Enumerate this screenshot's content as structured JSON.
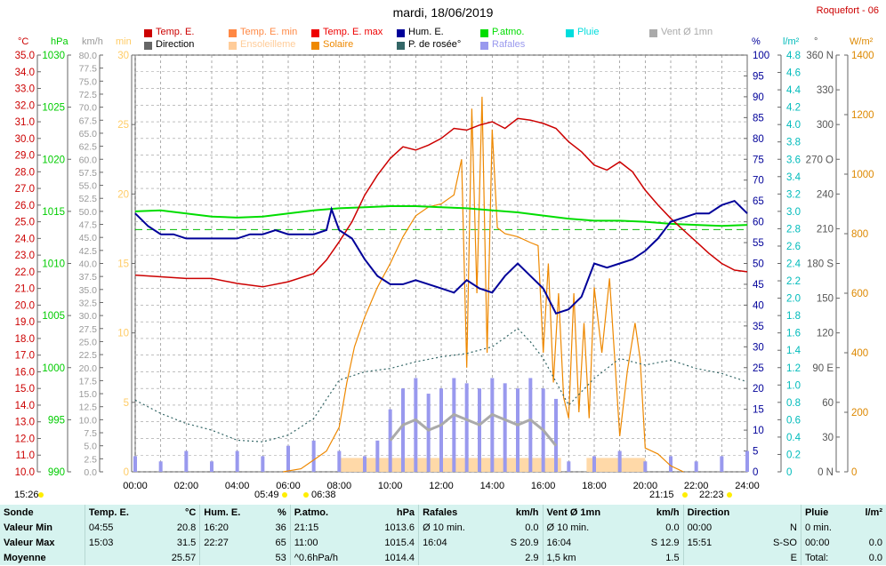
{
  "chart_data": {
    "type": "line",
    "title": "mardi, 18/06/2019",
    "station": "Roquefort - 06",
    "x_ticks": [
      "00:00",
      "02:00",
      "04:00",
      "06:00",
      "08:00",
      "10:00",
      "12:00",
      "14:00",
      "16:00",
      "18:00",
      "20:00",
      "22:00",
      "24:00"
    ],
    "x_range_hours": [
      0,
      24
    ],
    "sun_markers": [
      {
        "label": "15:26",
        "kind": "moon"
      },
      {
        "label": "05:49",
        "kind": "sunrise"
      },
      {
        "label": "06:38",
        "kind": "sunrise"
      },
      {
        "label": "21:15",
        "kind": "sunset"
      },
      {
        "label": "22:23",
        "kind": "moonset"
      }
    ],
    "axes": [
      {
        "unit": "°C",
        "color": "#cc0000",
        "range": [
          10,
          35
        ],
        "ticks": [
          "35.0",
          "34.0",
          "33.0",
          "32.0",
          "31.0",
          "30.0",
          "29.0",
          "28.0",
          "27.0",
          "26.0",
          "25.0",
          "24.0",
          "23.0",
          "22.0",
          "21.0",
          "20.0",
          "19.0",
          "18.0",
          "17.0",
          "16.0",
          "15.0",
          "14.0",
          "13.0",
          "12.0",
          "11.0",
          "10.0"
        ]
      },
      {
        "unit": "hPa",
        "color": "#00cc00",
        "range": [
          990,
          1030
        ],
        "ticks": [
          "1030",
          "1025",
          "1020",
          "1015",
          "1010",
          "1005",
          "1000",
          "995",
          "990"
        ]
      },
      {
        "unit": "km/h",
        "color": "#999999",
        "range": [
          0,
          80
        ],
        "ticks": [
          "80.0",
          "77.5",
          "75.0",
          "72.5",
          "70.0",
          "67.5",
          "65.0",
          "62.5",
          "60.0",
          "57.5",
          "55.0",
          "52.5",
          "50.0",
          "47.5",
          "45.0",
          "42.5",
          "40.0",
          "37.5",
          "35.0",
          "32.5",
          "30.0",
          "27.5",
          "25.0",
          "22.5",
          "20.0",
          "17.5",
          "15.0",
          "12.5",
          "10.0",
          "7.5",
          "5.0",
          "2.5",
          "0.0"
        ]
      },
      {
        "unit": "min",
        "color": "#ffcc66",
        "range": [
          0,
          30
        ],
        "ticks": [
          "30",
          "25",
          "20",
          "15",
          "10",
          "5",
          "0"
        ]
      },
      {
        "unit": "%",
        "color": "#000099",
        "range": [
          0,
          100
        ],
        "ticks": [
          "100",
          "95",
          "90",
          "85",
          "80",
          "75",
          "70",
          "65",
          "60",
          "55",
          "50",
          "45",
          "40",
          "35",
          "30",
          "25",
          "20",
          "15",
          "10",
          "5",
          "0"
        ]
      },
      {
        "unit": "l/m²",
        "color": "#00bbbb",
        "range": [
          0,
          5
        ],
        "ticks": [
          "4.8",
          "4.6",
          "4.4",
          "4.2",
          "4.0",
          "3.8",
          "3.6",
          "3.4",
          "3.2",
          "3.0",
          "2.8",
          "2.6",
          "2.4",
          "2.2",
          "2.0",
          "1.8",
          "1.6",
          "1.4",
          "1.2",
          "1.0",
          "0.8",
          "0.6",
          "0.4",
          "0.2",
          "0"
        ]
      },
      {
        "unit": "°",
        "color": "#555555",
        "range": [
          0,
          360
        ],
        "ticks": [
          "360 N",
          "330",
          "300",
          "270 O",
          "240",
          "210",
          "180 S",
          "150",
          "120",
          "90 E",
          "60",
          "30",
          "0 N"
        ]
      },
      {
        "unit": "W/m²",
        "color": "#dd8800",
        "range": [
          0,
          1400
        ],
        "ticks": [
          "1400",
          "1200",
          "1000",
          "800",
          "600",
          "400",
          "200",
          "0"
        ]
      }
    ],
    "legend": [
      {
        "label": "Temp. E.",
        "color": "#cc0000"
      },
      {
        "label": "Temp. E. min",
        "color": "#ff8844"
      },
      {
        "label": "Temp. E. max",
        "color": "#ee0000"
      },
      {
        "label": "Hum. E.",
        "color": "#000099"
      },
      {
        "label": "P.atmo.",
        "color": "#00dd00"
      },
      {
        "label": "Pluie",
        "color": "#00dddd"
      },
      {
        "label": "Vent Ø 1mn",
        "color": "#aaaaaa"
      },
      {
        "label": "Direction",
        "color": "#666666"
      },
      {
        "label": "Ensoleilleme",
        "color": "#ffcc99"
      },
      {
        "label": "Solaire",
        "color": "#ee8800"
      },
      {
        "label": "P. de rosée°",
        "color": "#336666"
      },
      {
        "label": "Rafales",
        "color": "#9999ee"
      }
    ],
    "series": [
      {
        "name": "Temp. E.",
        "unit": "°C",
        "x": [
          0,
          1,
          2,
          3,
          4,
          5,
          6,
          7,
          7.5,
          8,
          8.5,
          9,
          9.5,
          10,
          10.5,
          11,
          11.5,
          12,
          12.5,
          13,
          13.5,
          14,
          14.5,
          15,
          15.5,
          16,
          16.5,
          17,
          17.5,
          18,
          18.5,
          19,
          19.5,
          20,
          20.5,
          21,
          21.5,
          22,
          22.5,
          23,
          23.5,
          24
        ],
        "y": [
          21.8,
          21.7,
          21.6,
          21.6,
          21.3,
          21.1,
          21.4,
          21.9,
          22.7,
          23.8,
          25.0,
          26.6,
          27.8,
          28.8,
          29.5,
          29.3,
          29.6,
          30.0,
          30.6,
          30.5,
          30.8,
          31.0,
          30.6,
          31.2,
          31.1,
          30.9,
          30.6,
          29.8,
          29.2,
          28.4,
          28.1,
          28.6,
          28.0,
          26.9,
          26.0,
          25.2,
          24.5,
          23.8,
          23.1,
          22.5,
          22.1,
          22.0
        ]
      },
      {
        "name": "Hum. E.",
        "unit": "%",
        "x": [
          0,
          0.5,
          1,
          1.5,
          2,
          2.5,
          3,
          3.5,
          4,
          4.5,
          5,
          5.5,
          6,
          6.5,
          7,
          7.5,
          7.7,
          8,
          8.5,
          9,
          9.5,
          10,
          10.5,
          11,
          11.5,
          12,
          12.5,
          13,
          13.5,
          14,
          14.5,
          15,
          15.5,
          16,
          16.5,
          17,
          17.5,
          18,
          18.5,
          19,
          19.5,
          20,
          20.5,
          21,
          21.5,
          22,
          22.5,
          23,
          23.5,
          24
        ],
        "y": [
          62,
          59,
          57,
          57,
          56,
          56,
          56,
          56,
          56,
          57,
          57,
          58,
          57,
          57,
          57,
          58,
          63,
          58,
          56,
          51,
          47,
          45,
          45,
          46,
          45,
          44,
          43,
          46,
          44,
          43,
          47,
          50,
          47,
          44,
          38,
          39,
          42,
          50,
          49,
          50,
          51,
          53,
          56,
          60,
          61,
          62,
          62,
          64,
          65,
          62
        ]
      },
      {
        "name": "P.atmo.",
        "unit": "hPa",
        "x": [
          0,
          1,
          2,
          3,
          4,
          5,
          6,
          7,
          8,
          9,
          10,
          11,
          12,
          13,
          14,
          15,
          16,
          17,
          18,
          19,
          20,
          21,
          22,
          23,
          24
        ],
        "y": [
          1015.0,
          1015.1,
          1014.8,
          1014.5,
          1014.4,
          1014.5,
          1014.8,
          1015.1,
          1015.3,
          1015.4,
          1015.5,
          1015.5,
          1015.4,
          1015.3,
          1015.1,
          1014.9,
          1014.6,
          1014.3,
          1014.1,
          1014.1,
          1014.0,
          1013.8,
          1013.7,
          1013.6,
          1013.7
        ]
      },
      {
        "name": "P. de rosée°",
        "unit": "°C",
        "x": [
          0,
          1,
          2,
          3,
          4,
          5,
          6,
          7,
          8,
          9,
          10,
          11,
          12,
          13,
          14,
          15,
          15.5,
          16,
          17,
          18,
          19,
          20,
          21,
          22,
          23,
          24
        ],
        "y": [
          14.3,
          13.5,
          12.9,
          12.5,
          11.9,
          11.8,
          12.2,
          13.2,
          15.5,
          16.0,
          16.2,
          16.6,
          16.9,
          17.1,
          17.5,
          18.6,
          17.8,
          16.8,
          14.0,
          15.6,
          16.8,
          16.4,
          16.7,
          16.2,
          15.9,
          15.4
        ]
      },
      {
        "name": "Solaire",
        "unit": "W/m²",
        "x": [
          5.8,
          6.5,
          7,
          7.5,
          8,
          8.3,
          8.6,
          9,
          9.5,
          10,
          10.5,
          11,
          11.5,
          12,
          12.5,
          12.8,
          13,
          13.2,
          13.4,
          13.6,
          13.8,
          14,
          14.2,
          14.5,
          15,
          15.5,
          15.8,
          16,
          16.2,
          16.4,
          16.6,
          16.8,
          17,
          17.2,
          17.4,
          17.6,
          17.8,
          18,
          18.3,
          18.6,
          19,
          19.3,
          19.6,
          19.8,
          20,
          20.5,
          21,
          21.5
        ],
        "y": [
          0,
          10,
          40,
          70,
          150,
          300,
          420,
          520,
          620,
          700,
          790,
          860,
          890,
          900,
          930,
          1050,
          350,
          1220,
          600,
          1260,
          400,
          1150,
          820,
          800,
          790,
          770,
          760,
          400,
          700,
          300,
          600,
          250,
          180,
          600,
          200,
          500,
          180,
          620,
          400,
          650,
          120,
          340,
          500,
          380,
          80,
          60,
          20,
          0
        ]
      },
      {
        "name": "Rafales",
        "unit": "km/h",
        "x": [
          0,
          1,
          2,
          3,
          4,
          5,
          6,
          7,
          8,
          9,
          9.5,
          10,
          10.5,
          11,
          11.5,
          12,
          12.5,
          13,
          13.5,
          14,
          14.5,
          15,
          15.5,
          16,
          16.5,
          17,
          18,
          19,
          20,
          21,
          22,
          23,
          24
        ],
        "y": [
          3,
          2,
          4,
          2,
          4,
          3,
          5,
          6,
          4,
          3,
          6,
          12,
          16,
          18,
          15,
          16,
          18,
          17,
          16,
          18,
          17,
          16,
          18,
          16,
          14,
          2,
          3,
          4,
          2,
          3,
          2,
          3,
          4
        ]
      },
      {
        "name": "Vent Ø 1mn",
        "unit": "km/h",
        "x": [
          10,
          10.5,
          11,
          11.5,
          12,
          12.5,
          13,
          13.5,
          14,
          14.5,
          15,
          15.5,
          16,
          16.5
        ],
        "y": [
          6,
          9,
          10,
          8,
          9,
          11,
          10,
          9,
          11,
          10,
          9,
          10,
          8,
          5
        ]
      },
      {
        "name": "Ensoleilleme",
        "unit": "min",
        "x": [
          8.0,
          10.0,
          12.0,
          14.0,
          16.0,
          16.7,
          17.7,
          19.0,
          20.0
        ],
        "y": [
          1.0,
          1.0,
          1.0,
          1.0,
          1.0,
          0,
          1.0,
          1.0,
          1.0
        ]
      }
    ],
    "dewpoint_ref_line_hPa": 1013.25,
    "grid": true
  },
  "summary": {
    "headers": [
      "Sonde",
      "Temp. E.",
      "°C",
      "Hum. E.",
      "%",
      "P.atmo.",
      "hPa",
      "Rafales",
      "km/h",
      "Vent Ø 1mn",
      "km/h",
      "Direction",
      "",
      "Pluie",
      "l/m²"
    ],
    "rows": [
      [
        "Valeur Min",
        "04:55",
        "20.8",
        "16:20",
        "36",
        "21:15",
        "1013.6",
        "Ø 10 min.",
        "0.0",
        "Ø 10 min.",
        "0.0",
        "00:00",
        "N",
        "0 min.",
        ""
      ],
      [
        "Valeur Max",
        "15:03",
        "31.5",
        "22:27",
        "65",
        "11:00",
        "1015.4",
        "16:04",
        "S 20.9",
        "16:04",
        "S 12.9",
        "15:51",
        "S-SO",
        "00:00",
        "0.0"
      ],
      [
        "Moyenne",
        "",
        "25.57",
        "",
        "53",
        "^0.6hPa/h",
        "1014.4",
        "",
        "2.9",
        "1,5 km",
        "1.5",
        "",
        "E",
        "Total:",
        "0.0"
      ]
    ]
  }
}
